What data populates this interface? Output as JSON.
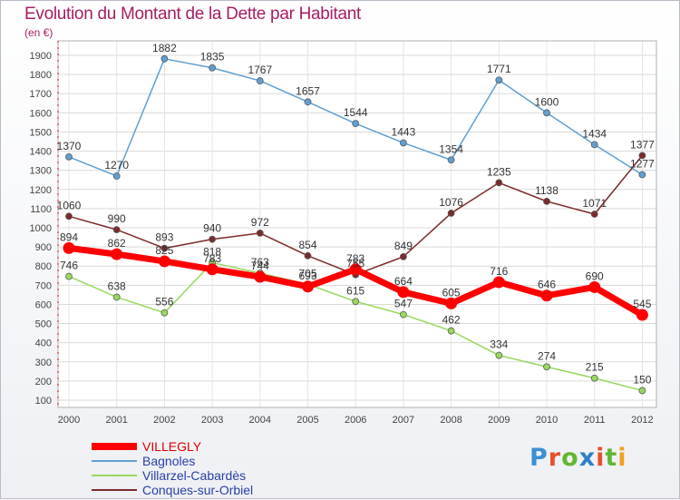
{
  "title": "Evolution du Montant de la Dette par Habitant",
  "subtitle": "(en €)",
  "logo": {
    "text": "Proxiti",
    "letter_colors": [
      "#3b8fd6",
      "#e8502a",
      "#5fb830",
      "#2f7fc8",
      "#e8502a",
      "#5fb830",
      "#f0a020"
    ]
  },
  "chart_data": {
    "type": "line",
    "x": [
      "2000",
      "2001",
      "2002",
      "2003",
      "2004",
      "2005",
      "2006",
      "2007",
      "2008",
      "2009",
      "2010",
      "2011",
      "2012"
    ],
    "yticks": [
      "100",
      "200",
      "300",
      "400",
      "500",
      "600",
      "700",
      "800",
      "900",
      "1000",
      "1100",
      "1200",
      "1300",
      "1400",
      "1500",
      "1600",
      "1700",
      "1800",
      "1900"
    ],
    "ylim": [
      100,
      1900
    ],
    "grid": "horizontal",
    "legend_position": "bottom-left",
    "series": [
      {
        "name": "VILLEGLY",
        "color": "#ff0000",
        "values": [
          894,
          862,
          825,
          783,
          744,
          693,
          783,
          664,
          605,
          716,
          646,
          690,
          545
        ]
      },
      {
        "name": "Bagnoles",
        "color": "#5f9fd2",
        "values": [
          1370,
          1270,
          1882,
          1835,
          1767,
          1657,
          1544,
          1443,
          1354,
          1771,
          1600,
          1434,
          1277
        ]
      },
      {
        "name": "Villarzel-Cabardès",
        "color": "#98d85e",
        "values": [
          746,
          638,
          556,
          818,
          763,
          705,
          615,
          547,
          462,
          334,
          274,
          215,
          150
        ]
      },
      {
        "name": "Conques-sur-Orbiel",
        "color": "#7c2a2a",
        "values": [
          1060,
          990,
          893,
          940,
          972,
          854,
          755,
          849,
          1076,
          1235,
          1138,
          1071,
          1377
        ]
      }
    ]
  }
}
